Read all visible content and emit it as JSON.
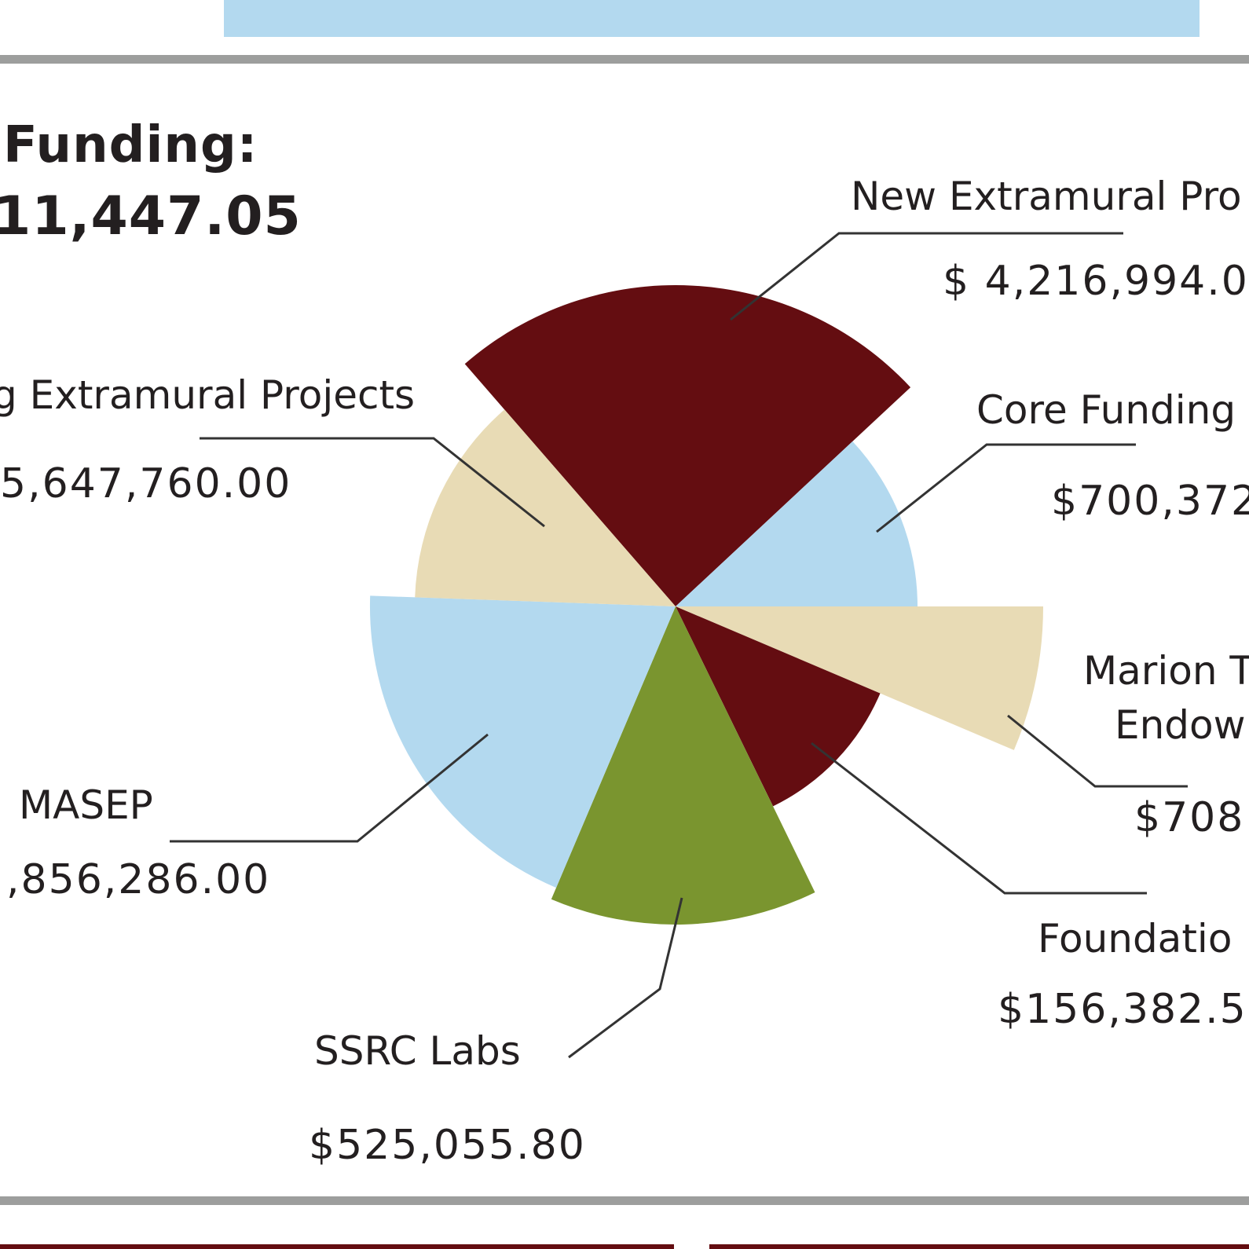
{
  "header": {
    "funding_heading": "Funding:",
    "funding_total": "11,447.05"
  },
  "colors": {
    "banner": "#b3d9ef",
    "rule": "#9d9e9d",
    "maroon": "#640d11",
    "light_blue": "#b3d9ef",
    "tan": "#e8dbb5",
    "green": "#7a952f",
    "leader": "#333333"
  },
  "chart_data": {
    "type": "polar-area",
    "title": "",
    "slices": [
      {
        "name": "New Extramural Pro",
        "value_label": "$ 4,216,994.0",
        "color": "#640d11",
        "start_angle": -41,
        "end_angle": 47,
        "radius": 409
      },
      {
        "name": "Core Funding",
        "value_label": "$700,372",
        "color": "#b3d9ef",
        "start_angle": 47,
        "end_angle": 90,
        "radius": 308
      },
      {
        "name": "Marion T",
        "name_line2": "Endow",
        "value_label": "$708",
        "color": "#e8dbb5",
        "start_angle": 90,
        "end_angle": 113,
        "radius": 468
      },
      {
        "name": "Foundatio",
        "value_label": "$156,382.5",
        "color": "#640d11",
        "start_angle": 113,
        "end_angle": 154,
        "radius": 283
      },
      {
        "name": "SSRC Labs",
        "value_label": "$525,055.80",
        "color": "#7a952f",
        "start_angle": 154,
        "end_angle": 203,
        "radius": 405
      },
      {
        "name": "MASEP",
        "value_label": ",856,286.00",
        "color": "#b3d9ef",
        "start_angle": 203,
        "end_angle": 272,
        "radius": 389
      },
      {
        "name": "g Extramural Projects",
        "value_label": "5,647,760.00",
        "color": "#e8dbb5",
        "start_angle": 272,
        "end_angle": 319,
        "radius": 332
      }
    ]
  }
}
